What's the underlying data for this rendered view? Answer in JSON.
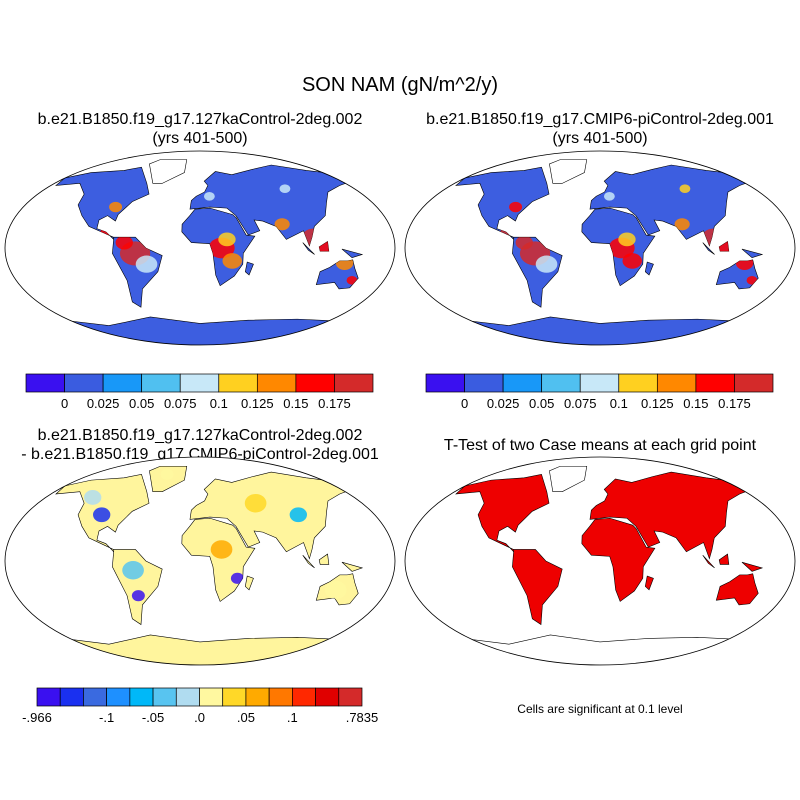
{
  "figure": {
    "title": "SON NAM (gN/m^2/y)"
  },
  "panels": [
    {
      "title_line1": "b.e21.B1850.f19_g17.127kaControl-2deg.002",
      "title_line2": "(yrs 401-500)"
    },
    {
      "title_line1": "b.e21.B1850.f19_g17.CMIP6-piControl-2deg.001",
      "title_line2": "(yrs 401-500)"
    },
    {
      "title_line1": "b.e21.B1850.f19_g17.127kaControl-2deg.002",
      "title_line2": "- b.e21.B1850.f19_g17.CMIP6-piControl-2deg.001"
    },
    {
      "title_line1": "T-Test of two Case means at each grid point",
      "note": "Cells are significant at 0.1 level"
    }
  ],
  "colorbar_case": {
    "colors": [
      "#3a10f0",
      "#3a5ce0",
      "#1898f8",
      "#50c0f0",
      "#c8e8f8",
      "#ffd020",
      "#ff8800",
      "#ff0000",
      "#d42a2a"
    ],
    "labels": [
      "0",
      "0.025",
      "0.05",
      "0.075",
      "0.1",
      "0.125",
      "0.15",
      "0.175"
    ]
  },
  "colorbar_diff": {
    "colors": [
      "#3a10f0",
      "#1a30f0",
      "#3a6ae0",
      "#1e90ff",
      "#00b8f8",
      "#58c4f0",
      "#b0dcf0",
      "#fff8a0",
      "#ffd828",
      "#ffaa00",
      "#ff7800",
      "#ff2800",
      "#e00000",
      "#d42a2a"
    ],
    "labels": [
      "-.966",
      "-.1",
      "-.05",
      ".0",
      ".05",
      ".1",
      ".7835"
    ]
  },
  "map_colors": {
    "case_base": "#3d5ee0",
    "diff_base": "#fff59d",
    "significant": "#ee0000"
  }
}
